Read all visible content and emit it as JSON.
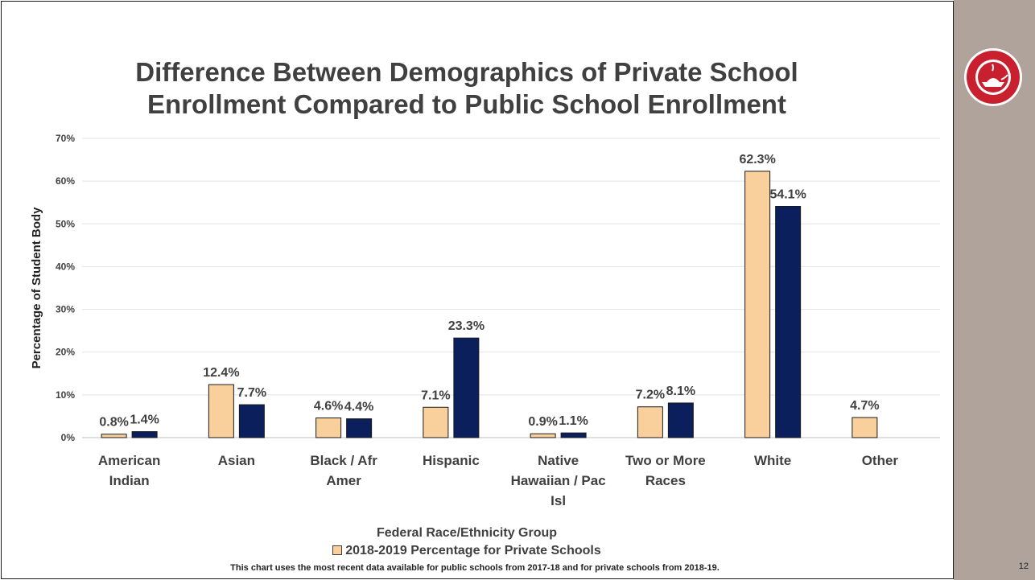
{
  "slide": {
    "page_number": "12",
    "footnote": "This chart uses the most recent data available for public schools from 2017-18 and for private schools from 2018-19.",
    "logo_icon": "state-board-of-education-seal-icon",
    "sidebar_color": "#b0a39b"
  },
  "chart_data": {
    "type": "bar",
    "title": "Difference Between Demographics of Private School Enrollment Compared to Public School Enrollment",
    "xlabel": "Federal Race/Ethnicity Group",
    "ylabel": "Percentage of Student Body",
    "ylim": [
      0,
      70
    ],
    "yticks": [
      "0%",
      "10%",
      "20%",
      "30%",
      "40%",
      "50%",
      "60%",
      "70%"
    ],
    "grid": true,
    "legend_position": "bottom",
    "categories": [
      [
        "American",
        "Indian"
      ],
      [
        "Asian"
      ],
      [
        "Black / Afr",
        "Amer"
      ],
      [
        "Hispanic"
      ],
      [
        "Native",
        "Hawaiian / Pac",
        "Isl"
      ],
      [
        "Two or More",
        "Races"
      ],
      [
        "White"
      ],
      [
        "Other"
      ]
    ],
    "series": [
      {
        "name": "2018-2019 Percentage for Private Schools",
        "color": "#f9cf9c",
        "values": [
          0.8,
          12.4,
          4.6,
          7.1,
          0.9,
          7.2,
          62.3,
          4.7
        ],
        "labels": [
          "0.8%",
          "12.4%",
          "4.6%",
          "7.1%",
          "0.9%",
          "7.2%",
          "62.3%",
          "4.7%"
        ]
      },
      {
        "color": "#0a1f5c",
        "values": [
          1.4,
          7.7,
          4.4,
          23.3,
          1.1,
          8.1,
          54.1,
          null
        ],
        "labels": [
          "1.4%",
          "7.7%",
          "4.4%",
          "23.3%",
          "1.1%",
          "8.1%",
          "54.1%",
          ""
        ]
      }
    ]
  }
}
